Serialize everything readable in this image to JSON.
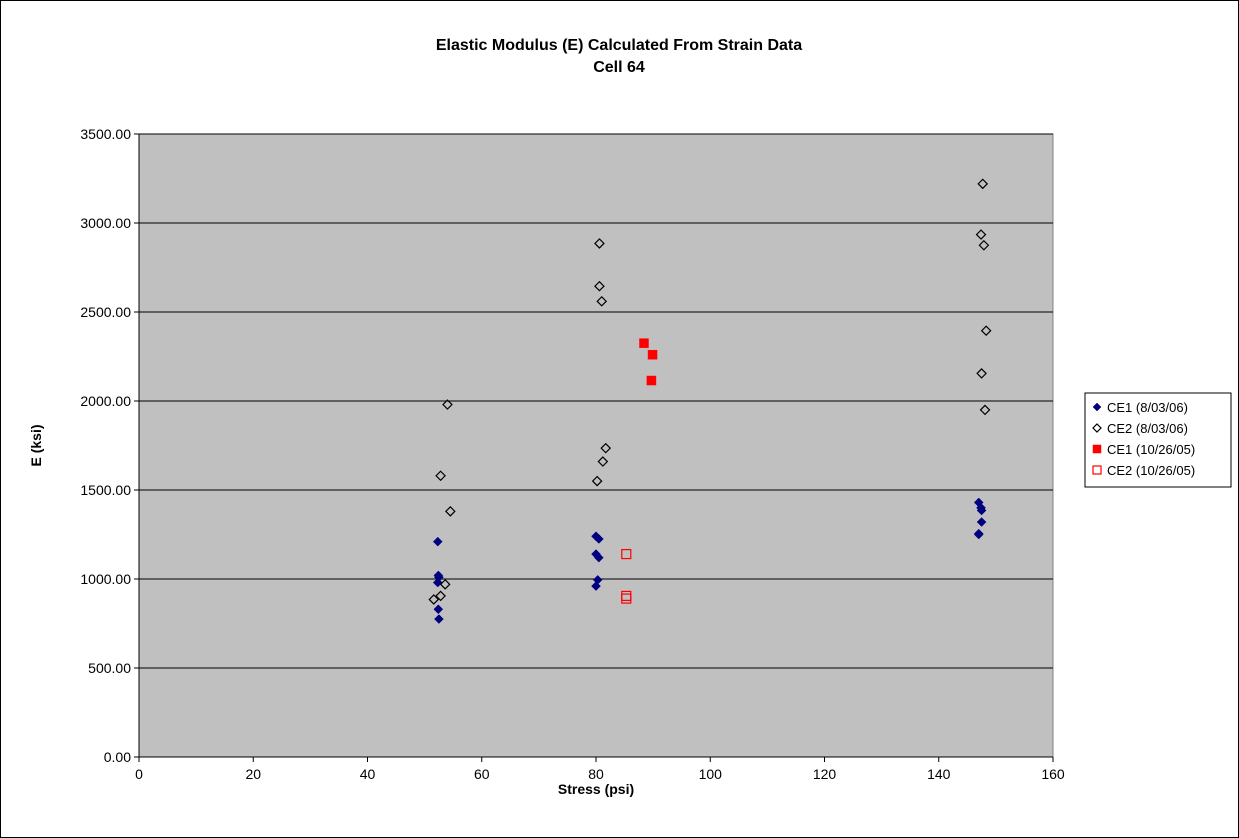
{
  "chart_data": {
    "type": "scatter",
    "title": [
      "Elastic Modulus (E) Calculated From Strain Data",
      "Cell 64"
    ],
    "xlabel": "Stress (psi)",
    "ylabel": "E (ksi)",
    "xlim": [
      0,
      160
    ],
    "ylim": [
      0,
      3500
    ],
    "x_ticks": [
      0,
      20,
      40,
      60,
      80,
      100,
      120,
      140,
      160
    ],
    "y_ticks": [
      0,
      500,
      1000,
      1500,
      2000,
      2500,
      3000,
      3500
    ],
    "y_tick_labels": [
      "0.00",
      "500.00",
      "1000.00",
      "1500.00",
      "2000.00",
      "2500.00",
      "3000.00",
      "3500.00"
    ],
    "grid": "horizontal",
    "plot_background": "#c0c0c0",
    "legend_position": "right",
    "series": [
      {
        "name": "CE1 (8/03/06)",
        "marker": "diamond",
        "filled": true,
        "color": "#000080",
        "points": [
          [
            52.3,
            1210
          ],
          [
            52.4,
            1020
          ],
          [
            52.5,
            1010
          ],
          [
            52.3,
            980
          ],
          [
            52.4,
            830
          ],
          [
            52.5,
            775
          ],
          [
            80.0,
            1240
          ],
          [
            80.5,
            1225
          ],
          [
            80.0,
            1140
          ],
          [
            80.5,
            1120
          ],
          [
            80.3,
            995
          ],
          [
            80.0,
            960
          ],
          [
            147.0,
            1430
          ],
          [
            147.4,
            1400
          ],
          [
            147.5,
            1385
          ],
          [
            147.5,
            1320
          ],
          [
            147.0,
            1255
          ],
          [
            147.0,
            1250
          ]
        ]
      },
      {
        "name": "CE2 (8/03/06)",
        "marker": "diamond",
        "filled": false,
        "color": "#000000",
        "points": [
          [
            54.0,
            1980
          ],
          [
            52.8,
            1580
          ],
          [
            54.5,
            1380
          ],
          [
            53.6,
            970
          ],
          [
            52.8,
            905
          ],
          [
            51.6,
            885
          ],
          [
            80.6,
            2885
          ],
          [
            80.6,
            2645
          ],
          [
            81.0,
            2560
          ],
          [
            81.7,
            1735
          ],
          [
            81.2,
            1660
          ],
          [
            80.2,
            1550
          ],
          [
            147.7,
            3220
          ],
          [
            147.4,
            2935
          ],
          [
            147.9,
            2875
          ],
          [
            148.3,
            2395
          ],
          [
            147.5,
            2155
          ],
          [
            148.1,
            1950
          ]
        ]
      },
      {
        "name": "CE1 (10/26/05)",
        "marker": "square",
        "filled": true,
        "color": "#ff0000",
        "points": [
          [
            88.4,
            2325
          ],
          [
            89.9,
            2260
          ],
          [
            89.7,
            2115
          ]
        ]
      },
      {
        "name": "CE2 (10/26/05)",
        "marker": "square",
        "filled": false,
        "color": "#ff0000",
        "points": [
          [
            85.3,
            1140
          ],
          [
            85.3,
            905
          ],
          [
            85.3,
            890
          ]
        ]
      }
    ]
  }
}
